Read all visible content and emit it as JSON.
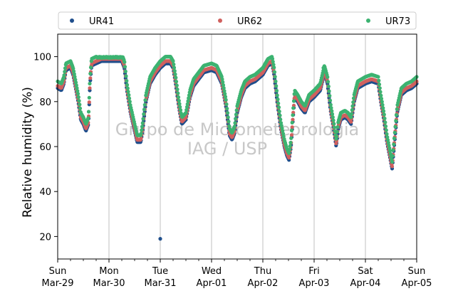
{
  "chart_data": {
    "type": "scatter",
    "ylabel": "Relative humidity (%)",
    "xlabel": "",
    "watermark": [
      "Grupo de Micrometeorologia",
      "IAG / USP"
    ],
    "legend": {
      "placement": "top",
      "entries": [
        "UR41",
        "UR62",
        "UR73"
      ]
    },
    "grid": "vertical at daily ticks",
    "xlim": [
      0,
      7
    ],
    "ylim": [
      10,
      110
    ],
    "yticks": [
      20,
      40,
      60,
      80,
      100
    ],
    "xtick_labels": [
      [
        "Sun",
        "Mar-29"
      ],
      [
        "Mon",
        "Mar-30"
      ],
      [
        "Tue",
        "Mar-31"
      ],
      [
        "Wed",
        "Apr-01"
      ],
      [
        "Thu",
        "Apr-02"
      ],
      [
        "Fri",
        "Apr-03"
      ],
      [
        "Sat",
        "Apr-04"
      ],
      [
        "Sun",
        "Apr-05"
      ]
    ],
    "x_unit": "days since Sun Mar-29 00:00",
    "colors": {
      "UR41": "#1f4e8c",
      "UR62": "#d0605e",
      "UR73": "#3cb371"
    },
    "base_profile": [
      [
        0.0,
        86
      ],
      [
        0.07,
        85
      ],
      [
        0.12,
        88
      ],
      [
        0.16,
        94
      ],
      [
        0.25,
        95
      ],
      [
        0.3,
        92
      ],
      [
        0.4,
        80
      ],
      [
        0.45,
        72
      ],
      [
        0.5,
        70
      ],
      [
        0.55,
        67
      ],
      [
        0.6,
        70
      ],
      [
        0.63,
        88
      ],
      [
        0.66,
        96
      ],
      [
        0.75,
        97
      ],
      [
        0.85,
        98
      ],
      [
        1.0,
        98
      ],
      [
        1.15,
        98
      ],
      [
        1.25,
        98
      ],
      [
        1.3,
        95
      ],
      [
        1.35,
        85
      ],
      [
        1.42,
        75
      ],
      [
        1.5,
        67
      ],
      [
        1.55,
        62
      ],
      [
        1.62,
        62
      ],
      [
        1.66,
        68
      ],
      [
        1.72,
        80
      ],
      [
        1.8,
        88
      ],
      [
        1.9,
        92
      ],
      [
        2.0,
        95
      ],
      [
        2.1,
        97
      ],
      [
        2.2,
        97
      ],
      [
        2.25,
        95
      ],
      [
        2.3,
        88
      ],
      [
        2.36,
        78
      ],
      [
        2.42,
        70
      ],
      [
        2.5,
        72
      ],
      [
        2.58,
        82
      ],
      [
        2.65,
        87
      ],
      [
        2.75,
        90
      ],
      [
        2.85,
        93
      ],
      [
        3.0,
        94
      ],
      [
        3.1,
        93
      ],
      [
        3.2,
        88
      ],
      [
        3.28,
        78
      ],
      [
        3.35,
        65
      ],
      [
        3.4,
        63
      ],
      [
        3.45,
        66
      ],
      [
        3.5,
        75
      ],
      [
        3.58,
        82
      ],
      [
        3.65,
        86
      ],
      [
        3.75,
        88
      ],
      [
        3.85,
        89
      ],
      [
        4.0,
        92
      ],
      [
        4.1,
        96
      ],
      [
        4.18,
        97
      ],
      [
        4.22,
        92
      ],
      [
        4.28,
        80
      ],
      [
        4.35,
        68
      ],
      [
        4.42,
        60
      ],
      [
        4.47,
        56
      ],
      [
        4.51,
        54
      ],
      [
        4.55,
        60
      ],
      [
        4.58,
        70
      ],
      [
        4.62,
        82
      ],
      [
        4.68,
        80
      ],
      [
        4.75,
        77
      ],
      [
        4.82,
        75
      ],
      [
        4.9,
        80
      ],
      [
        5.0,
        82
      ],
      [
        5.12,
        85
      ],
      [
        5.2,
        93
      ],
      [
        5.26,
        88
      ],
      [
        5.32,
        76
      ],
      [
        5.38,
        68
      ],
      [
        5.43,
        60
      ],
      [
        5.47,
        68
      ],
      [
        5.52,
        72
      ],
      [
        5.6,
        73
      ],
      [
        5.66,
        72
      ],
      [
        5.72,
        70
      ],
      [
        5.78,
        80
      ],
      [
        5.85,
        86
      ],
      [
        6.0,
        88
      ],
      [
        6.12,
        89
      ],
      [
        6.25,
        88
      ],
      [
        6.3,
        80
      ],
      [
        6.36,
        72
      ],
      [
        6.42,
        62
      ],
      [
        6.48,
        55
      ],
      [
        6.52,
        50
      ],
      [
        6.56,
        60
      ],
      [
        6.62,
        75
      ],
      [
        6.7,
        83
      ],
      [
        6.8,
        85
      ],
      [
        6.9,
        86
      ],
      [
        7.0,
        88
      ]
    ],
    "series": [
      {
        "name": "UR41",
        "offset": 0,
        "outliers": [
          [
            2.0,
            19
          ],
          [
            5.0,
            85
          ]
        ]
      },
      {
        "name": "UR62",
        "offset": 1,
        "outliers": []
      },
      {
        "name": "UR73",
        "offset": 3,
        "outliers": [
          [
            5.18,
            95
          ]
        ]
      }
    ]
  }
}
